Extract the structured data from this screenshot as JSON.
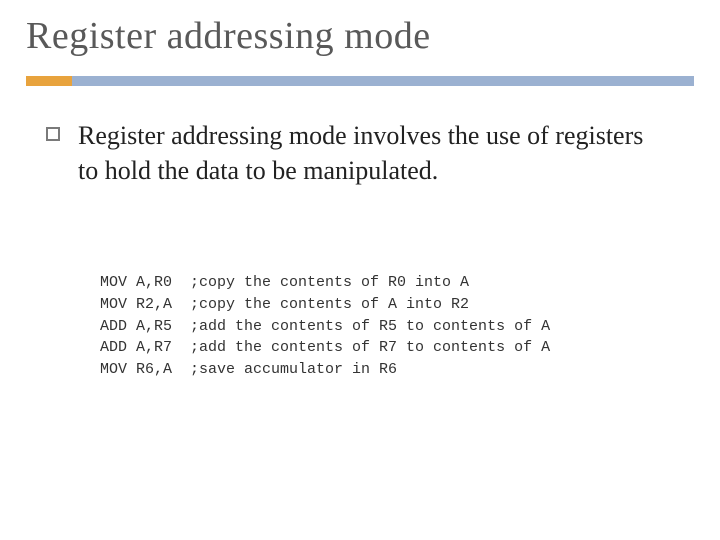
{
  "slide": {
    "title": "Register addressing mode",
    "underline": {
      "orange": "#e8a33d",
      "blue": "#9bb1d1"
    },
    "background": "#ffffff",
    "title_color": "#595959",
    "title_fontsize": 38,
    "body_color": "#222222",
    "body_fontsize": 26,
    "bullet_border_color": "#7a7a7a",
    "bullet": "Register addressing mode involves the use of registers to hold the data to be manipulated.",
    "code": {
      "font_family": "Courier New",
      "font_size": 15,
      "color": "#333333",
      "lines": [
        {
          "instr": "MOV A,R0",
          "comment": ";copy the contents of R0 into A"
        },
        {
          "instr": "MOV R2,A",
          "comment": ";copy the contents of A into R2"
        },
        {
          "instr": "ADD A,R5",
          "comment": ";add the contents of R5 to contents of A"
        },
        {
          "instr": "ADD A,R7",
          "comment": ";add the contents of R7 to contents of A"
        },
        {
          "instr": "MOV R6,A",
          "comment": ";save accumulator in R6"
        }
      ],
      "instr_col_width": 10
    }
  }
}
